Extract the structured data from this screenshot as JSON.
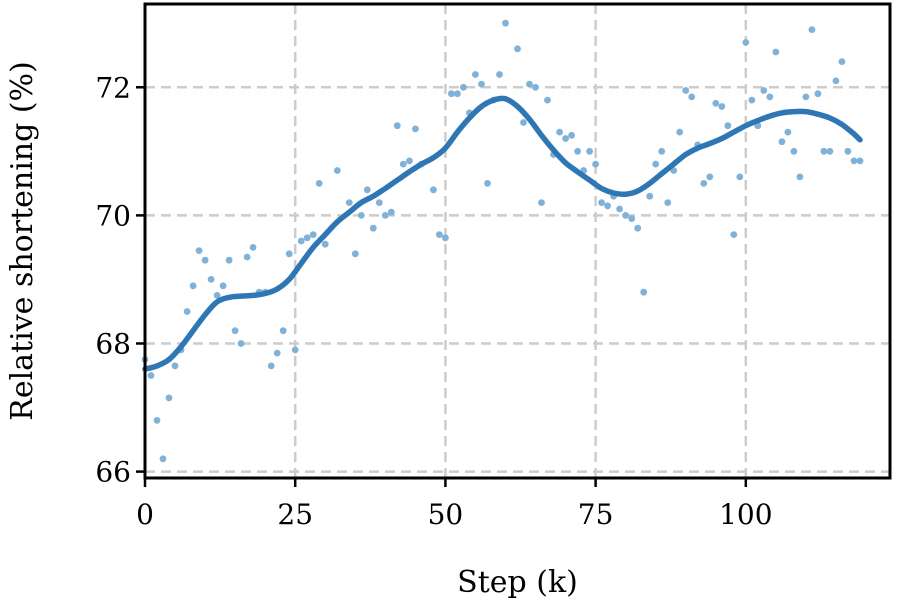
{
  "chart_data": {
    "type": "scatter",
    "xlabel": "Step (k)",
    "ylabel": "Relative shortening (%)",
    "xlim": [
      0,
      124
    ],
    "ylim": [
      65.9,
      73.3
    ],
    "xticks": [
      0,
      25,
      50,
      75,
      100
    ],
    "yticks": [
      66,
      68,
      70,
      72
    ],
    "grid": true,
    "colors": {
      "points": "#7fb2d6",
      "trend": "#2f77b4"
    },
    "series": [
      {
        "kind": "points",
        "x": [
          0,
          1,
          2,
          3,
          4,
          5,
          6,
          7,
          8,
          9,
          10,
          11,
          12,
          13,
          14,
          15,
          16,
          17,
          18,
          19,
          20,
          21,
          22,
          23,
          24,
          25,
          26,
          27,
          28,
          29,
          30,
          32,
          34,
          35,
          36,
          37,
          38,
          39,
          40,
          41,
          42,
          43,
          44,
          45,
          46,
          48,
          49,
          50,
          51,
          52,
          53,
          54,
          55,
          56,
          57,
          58,
          59,
          60,
          62,
          63,
          64,
          65,
          66,
          67,
          68,
          69,
          70,
          71,
          72,
          73,
          74,
          75,
          76,
          77,
          78,
          79,
          80,
          81,
          82,
          83,
          84,
          85,
          86,
          87,
          88,
          89,
          90,
          91,
          92,
          93,
          94,
          95,
          96,
          97,
          98,
          99,
          100,
          101,
          102,
          103,
          104,
          105,
          106,
          107,
          108,
          109,
          110,
          111,
          112,
          113,
          114,
          115,
          116,
          117,
          118,
          119
        ],
        "y": [
          67.75,
          67.5,
          66.8,
          66.2,
          67.15,
          67.65,
          67.9,
          68.5,
          68.9,
          69.45,
          69.3,
          69.0,
          68.75,
          68.9,
          69.3,
          68.2,
          68.0,
          69.35,
          69.5,
          68.8,
          68.8,
          67.65,
          67.85,
          68.2,
          69.4,
          67.9,
          69.6,
          69.65,
          69.7,
          70.5,
          69.55,
          70.7,
          70.2,
          69.4,
          70.0,
          70.4,
          69.8,
          70.2,
          70.0,
          70.05,
          71.4,
          70.8,
          70.85,
          71.35,
          70.8,
          70.4,
          69.7,
          69.65,
          71.9,
          71.9,
          72.0,
          71.6,
          72.2,
          72.05,
          70.5,
          71.8,
          72.2,
          73.0,
          72.6,
          71.45,
          72.05,
          72.0,
          70.2,
          71.8,
          70.95,
          71.3,
          71.2,
          71.25,
          71.0,
          70.7,
          71.0,
          70.8,
          70.2,
          70.15,
          70.3,
          70.1,
          70.0,
          69.95,
          69.8,
          68.8,
          70.3,
          70.8,
          71.0,
          70.2,
          70.7,
          71.3,
          71.95,
          71.85,
          71.1,
          70.5,
          70.6,
          71.75,
          71.7,
          71.4,
          69.7,
          70.6,
          72.7,
          71.8,
          71.4,
          71.95,
          71.85,
          72.55,
          71.15,
          71.3,
          71.0,
          70.6,
          71.85,
          72.9,
          71.9,
          71.0,
          71.0,
          72.1,
          72.4,
          71.0,
          70.85,
          70.85
        ]
      },
      {
        "kind": "trend",
        "x": [
          0,
          2,
          4,
          6,
          8,
          10,
          12,
          14,
          16,
          18,
          20,
          22,
          24,
          26,
          28,
          30,
          32,
          34,
          36,
          38,
          40,
          42,
          44,
          46,
          48,
          50,
          52,
          54,
          56,
          58,
          60,
          62,
          64,
          66,
          68,
          70,
          72,
          74,
          76,
          78,
          80,
          82,
          84,
          86,
          88,
          90,
          92,
          94,
          96,
          98,
          100,
          102,
          104,
          106,
          108,
          110,
          112,
          114,
          116,
          118,
          119
        ],
        "y": [
          67.6,
          67.65,
          67.75,
          67.95,
          68.2,
          68.45,
          68.65,
          68.72,
          68.74,
          68.75,
          68.78,
          68.85,
          69.0,
          69.25,
          69.5,
          69.7,
          69.9,
          70.05,
          70.2,
          70.3,
          70.42,
          70.55,
          70.68,
          70.8,
          70.9,
          71.05,
          71.3,
          71.52,
          71.7,
          71.8,
          71.82,
          71.7,
          71.5,
          71.25,
          71.02,
          70.82,
          70.68,
          70.55,
          70.42,
          70.35,
          70.33,
          70.38,
          70.5,
          70.65,
          70.8,
          70.95,
          71.05,
          71.12,
          71.2,
          71.3,
          71.4,
          71.48,
          71.55,
          71.6,
          71.62,
          71.62,
          71.58,
          71.52,
          71.42,
          71.27,
          71.18
        ]
      }
    ]
  }
}
